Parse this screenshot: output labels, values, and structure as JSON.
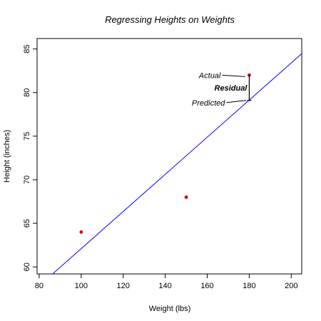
{
  "chart_data": {
    "type": "scatter",
    "title": "Regressing Heights on Weights",
    "xlabel": "Weight (lbs)",
    "ylabel": "Height (inches)",
    "xlim": [
      79,
      205
    ],
    "ylim": [
      59.2,
      86.2
    ],
    "x_ticks": [
      80,
      100,
      120,
      140,
      160,
      180,
      200
    ],
    "y_ticks": [
      60,
      65,
      70,
      75,
      80,
      85
    ],
    "grid": false,
    "points": [
      {
        "x": 100,
        "y": 64
      },
      {
        "x": 150,
        "y": 68
      },
      {
        "x": 180,
        "y": 82
      }
    ],
    "regression_line": {
      "slope": 0.213,
      "intercept": 40.8
    },
    "predicted_point": {
      "x": 180,
      "y": 79.1
    },
    "annotations": {
      "actual": "Actual",
      "residual": "Residual",
      "predicted": "Predicted"
    },
    "colors": {
      "points": "#dd0000",
      "regression_line": "#0000ff",
      "axes": "#000000"
    }
  }
}
